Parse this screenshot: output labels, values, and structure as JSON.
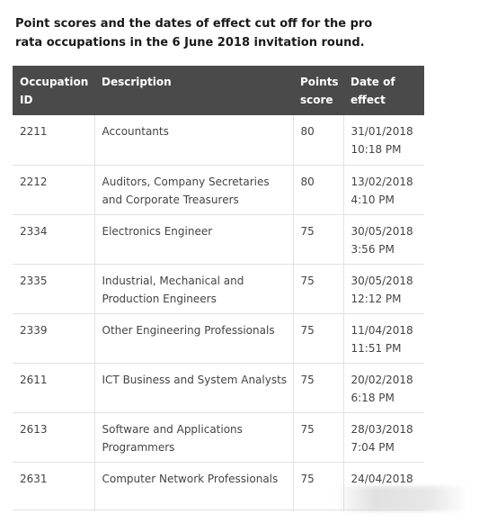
{
  "caption": "Point scores and the dates of effect cut off for the pro rata occupations in the 6 June 2018 invitation round.",
  "table": {
    "headers": {
      "id": "Occupation ID",
      "description": "Description",
      "points": "Points score",
      "date": "Date of effect"
    },
    "rows": [
      {
        "id": "2211",
        "description": "Accountants",
        "points": "80",
        "date": "31/01/2018 10:18 PM"
      },
      {
        "id": "2212",
        "description": "Auditors, Company Secretaries and Corporate Treasurers",
        "points": "80",
        "date": "13/02/2018 4:10 PM"
      },
      {
        "id": "2334",
        "description": "Electronics Engineer",
        "points": "75",
        "date": "30/05/2018 3:56 PM"
      },
      {
        "id": "2335",
        "description": "Industrial, Mechanical and Production Engineers",
        "points": "75",
        "date": "30/05/2018 12:12 PM"
      },
      {
        "id": "2339",
        "description": "Other Engineering Professionals",
        "points": "75",
        "date": "11/04/2018 11:51 PM"
      },
      {
        "id": "2611",
        "description": "ICT Business and System Analysts",
        "points": "75",
        "date": "20/02/2018 6:18 PM"
      },
      {
        "id": "2613",
        "description": "Software and Applications Programmers",
        "points": "75",
        "date": "28/03/2018 7:04 PM"
      },
      {
        "id": "2631",
        "description": "Computer Network Professionals",
        "points": "75",
        "date": "24/04/2018"
      }
    ]
  },
  "colors": {
    "header_bg": "#4a4a4a",
    "header_text": "#ffffff",
    "cell_text": "#444444",
    "grid": "#e2e2e2"
  }
}
